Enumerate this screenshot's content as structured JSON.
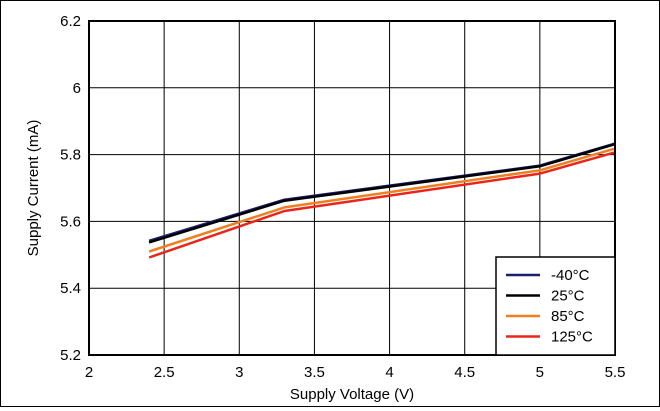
{
  "chart_data": {
    "type": "line",
    "xlabel": "Supply Voltage (V)",
    "ylabel": "Supply Current (mA)",
    "xlim": [
      2,
      5.5
    ],
    "ylim": [
      5.2,
      6.2
    ],
    "xticks": [
      2,
      2.5,
      3,
      3.5,
      4,
      4.5,
      5,
      5.5
    ],
    "yticks": [
      5.2,
      5.4,
      5.6,
      5.8,
      6,
      6.2
    ],
    "xtick_labels": [
      "2",
      "2.5",
      "3",
      "3.5",
      "4",
      "4.5",
      "5",
      "5.5"
    ],
    "ytick_labels": [
      "5.2",
      "5.4",
      "5.6",
      "5.8",
      "6",
      "6.2"
    ],
    "grid": true,
    "legend_position": "bottom-right",
    "x": [
      2.4,
      3.3,
      5.0,
      5.5
    ],
    "series": [
      {
        "name": "-40°C",
        "color": "#1a1f6e",
        "values": [
          5.542,
          5.665,
          5.767,
          5.833
        ]
      },
      {
        "name": "25°C",
        "color": "#000000",
        "values": [
          5.537,
          5.662,
          5.765,
          5.831
        ]
      },
      {
        "name": "85°C",
        "color": "#f07f20",
        "values": [
          5.51,
          5.642,
          5.753,
          5.818
        ]
      },
      {
        "name": "125°C",
        "color": "#e8261c",
        "values": [
          5.492,
          5.631,
          5.743,
          5.807
        ]
      }
    ]
  }
}
